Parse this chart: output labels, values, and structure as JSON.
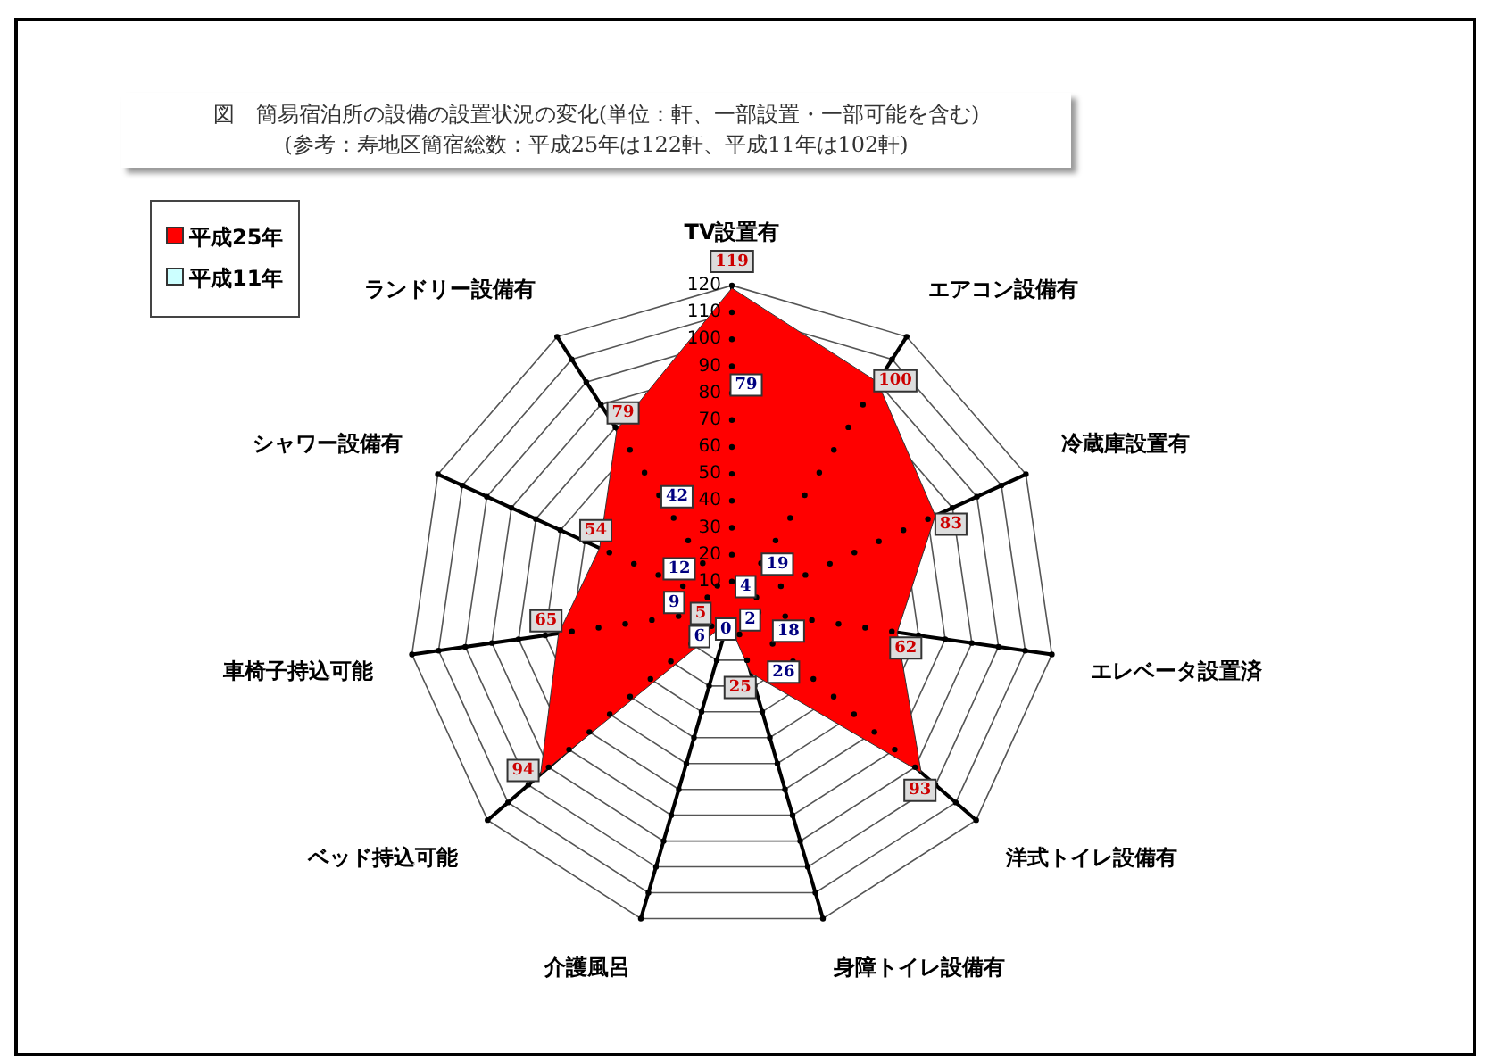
{
  "chart_data": {
    "type": "radar",
    "title": "図　簡易宿泊所の設備の設置状況の変化(単位：軒、一部設置・一部可能を含む)",
    "subtitle": "(参考：寿地区簡宿総数：平成25年は122軒、平成11年は102軒)",
    "categories": [
      "TV設置有",
      "エアコン設備有",
      "冷蔵庫設置有",
      "エレベータ設置済",
      "洋式トイレ設備有",
      "身障トイレ設備有",
      "介護風呂",
      "ベッド持込可能",
      "車椅子持込可能",
      "シャワー設備有",
      "ランドリー設備有"
    ],
    "series": [
      {
        "name": "平成25年",
        "color": "#ff0000",
        "values": [
          119,
          100,
          83,
          62,
          93,
          25,
          5,
          94,
          65,
          54,
          79
        ]
      },
      {
        "name": "平成11年",
        "color": "#ccffff",
        "values": [
          79,
          19,
          4,
          18,
          26,
          2,
          0,
          6,
          9,
          12,
          42
        ]
      }
    ],
    "ylim": [
      0,
      120
    ],
    "yticks": [
      10,
      20,
      30,
      40,
      50,
      60,
      70,
      80,
      90,
      100,
      110,
      120
    ],
    "grid": true,
    "legend": "top left",
    "data_labels": true,
    "marker": "none"
  }
}
